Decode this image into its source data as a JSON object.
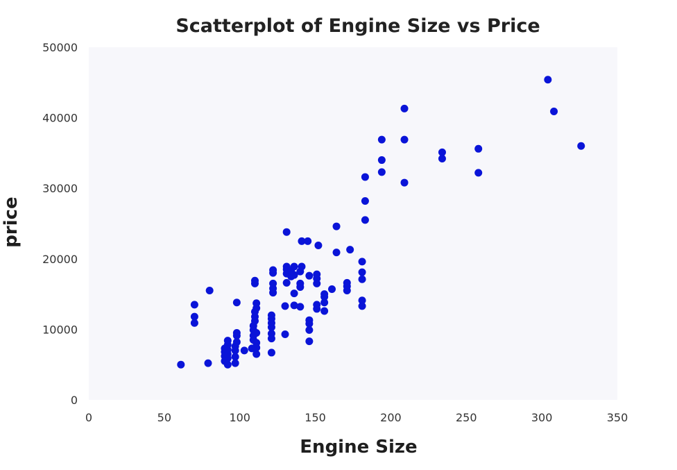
{
  "chart_data": {
    "type": "scatter",
    "title": "Scatterplot of Engine Size vs Price",
    "xlabel": "Engine Size",
    "ylabel": "price",
    "xlim": [
      0,
      350
    ],
    "ylim": [
      0,
      50000
    ],
    "xticks": [
      "0",
      "50",
      "100",
      "150",
      "200",
      "250",
      "300",
      "350"
    ],
    "yticks": [
      "0",
      "10000",
      "20000",
      "30000",
      "40000",
      "50000"
    ],
    "grid": false,
    "colors": {
      "point": "#0a14d8",
      "plot_background": "#f7f7fb"
    },
    "points": [
      [
        61,
        5000
      ],
      [
        70,
        13500
      ],
      [
        70,
        11800
      ],
      [
        70,
        10900
      ],
      [
        79,
        5200
      ],
      [
        80,
        15500
      ],
      [
        90,
        5500
      ],
      [
        90,
        6200
      ],
      [
        90,
        6800
      ],
      [
        90,
        7300
      ],
      [
        92,
        5000
      ],
      [
        92,
        5900
      ],
      [
        92,
        6500
      ],
      [
        92,
        7100
      ],
      [
        92,
        7800
      ],
      [
        92,
        8400
      ],
      [
        97,
        5200
      ],
      [
        97,
        6100
      ],
      [
        97,
        7000
      ],
      [
        97,
        7600
      ],
      [
        98,
        8200
      ],
      [
        98,
        9100
      ],
      [
        98,
        9500
      ],
      [
        98,
        13800
      ],
      [
        103,
        7000
      ],
      [
        108,
        7300
      ],
      [
        109,
        8500
      ],
      [
        109,
        9100
      ],
      [
        109,
        9900
      ],
      [
        109,
        10500
      ],
      [
        110,
        11200
      ],
      [
        110,
        11800
      ],
      [
        110,
        12500
      ],
      [
        110,
        16500
      ],
      [
        110,
        16900
      ],
      [
        111,
        6500
      ],
      [
        111,
        7400
      ],
      [
        111,
        8100
      ],
      [
        111,
        9500
      ],
      [
        111,
        13000
      ],
      [
        111,
        13700
      ],
      [
        121,
        6700
      ],
      [
        121,
        8700
      ],
      [
        121,
        9400
      ],
      [
        121,
        10300
      ],
      [
        121,
        10900
      ],
      [
        121,
        11500
      ],
      [
        121,
        12000
      ],
      [
        122,
        15200
      ],
      [
        122,
        15800
      ],
      [
        122,
        16500
      ],
      [
        122,
        18000
      ],
      [
        122,
        18400
      ],
      [
        130,
        9300
      ],
      [
        130,
        13300
      ],
      [
        131,
        16600
      ],
      [
        131,
        17900
      ],
      [
        131,
        18500
      ],
      [
        131,
        18900
      ],
      [
        131,
        23800
      ],
      [
        134,
        17500
      ],
      [
        134,
        18300
      ],
      [
        136,
        15100
      ],
      [
        136,
        13400
      ],
      [
        136,
        17700
      ],
      [
        136,
        18900
      ],
      [
        140,
        13200
      ],
      [
        140,
        16000
      ],
      [
        140,
        16500
      ],
      [
        140,
        18200
      ],
      [
        141,
        18900
      ],
      [
        141,
        22500
      ],
      [
        145,
        22500
      ],
      [
        146,
        8300
      ],
      [
        146,
        9900
      ],
      [
        146,
        10800
      ],
      [
        146,
        11300
      ],
      [
        146,
        17600
      ],
      [
        151,
        12900
      ],
      [
        151,
        13500
      ],
      [
        151,
        16500
      ],
      [
        151,
        17200
      ],
      [
        151,
        17800
      ],
      [
        152,
        21900
      ],
      [
        156,
        12600
      ],
      [
        156,
        13800
      ],
      [
        156,
        14600
      ],
      [
        156,
        15000
      ],
      [
        161,
        15700
      ],
      [
        164,
        20900
      ],
      [
        164,
        24600
      ],
      [
        171,
        15500
      ],
      [
        171,
        16100
      ],
      [
        171,
        16600
      ],
      [
        173,
        21300
      ],
      [
        181,
        13300
      ],
      [
        181,
        14100
      ],
      [
        181,
        17100
      ],
      [
        181,
        18100
      ],
      [
        181,
        19600
      ],
      [
        183,
        25500
      ],
      [
        183,
        28200
      ],
      [
        183,
        31600
      ],
      [
        194,
        32300
      ],
      [
        194,
        34000
      ],
      [
        194,
        36900
      ],
      [
        209,
        30800
      ],
      [
        209,
        36900
      ],
      [
        209,
        41300
      ],
      [
        234,
        34200
      ],
      [
        234,
        35100
      ],
      [
        258,
        32200
      ],
      [
        258,
        35600
      ],
      [
        304,
        45400
      ],
      [
        308,
        40900
      ],
      [
        326,
        36000
      ]
    ]
  }
}
